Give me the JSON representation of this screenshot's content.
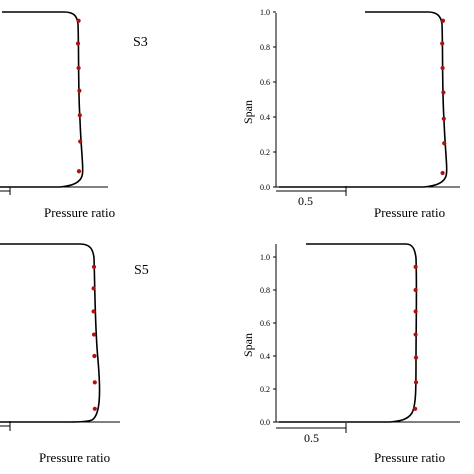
{
  "colors": {
    "curve": "#000000",
    "marker": "#b01010",
    "axis": "#000000"
  },
  "chart_data": [
    {
      "type": "line",
      "panel_label": "S3",
      "xlabel": "Pressure ratio",
      "ylabel": "",
      "ylim": [
        0,
        1.0
      ],
      "y_ticks": [],
      "scale_bar_label": "",
      "series": [
        {
          "type": "line",
          "y": [
            1.0,
            0.99,
            0.97,
            0.93,
            0.85,
            0.7,
            0.55,
            0.4,
            0.25,
            0.12,
            0.06,
            0.03,
            0.01,
            0.0
          ],
          "x": [
            0.0,
            0.07,
            0.1,
            0.11,
            0.115,
            0.115,
            0.12,
            0.13,
            0.13,
            0.12,
            0.1,
            0.05,
            0.0,
            -0.05
          ]
        },
        {
          "type": "scatter",
          "y": [
            0.95,
            0.82,
            0.68,
            0.55,
            0.41,
            0.26,
            0.09
          ],
          "x": [
            0.1,
            0.085,
            0.1,
            0.12,
            0.13,
            0.14,
            0.11
          ]
        }
      ]
    },
    {
      "type": "line",
      "panel_label": "",
      "xlabel": "Pressure ratio",
      "ylabel": "Span",
      "ylim": [
        0,
        1.0
      ],
      "y_ticks": [
        "0.0",
        "0.2",
        "0.4",
        "0.6",
        "0.8",
        "1.0"
      ],
      "scale_bar_label": "0.5",
      "series": [
        {
          "type": "line",
          "y": [
            1.0,
            0.99,
            0.97,
            0.93,
            0.85,
            0.7,
            0.55,
            0.4,
            0.25,
            0.12,
            0.06,
            0.03,
            0.01,
            0.0
          ],
          "x": [
            0.0,
            0.07,
            0.1,
            0.11,
            0.115,
            0.115,
            0.12,
            0.13,
            0.13,
            0.12,
            0.1,
            0.05,
            0.0,
            -0.05
          ]
        },
        {
          "type": "scatter",
          "y": [
            0.95,
            0.82,
            0.68,
            0.54,
            0.39,
            0.25,
            0.08
          ],
          "x": [
            0.11,
            0.09,
            0.1,
            0.12,
            0.13,
            0.14,
            0.1
          ]
        }
      ]
    },
    {
      "type": "line",
      "panel_label": "S5",
      "xlabel": "Pressure ratio",
      "ylabel": "",
      "ylim": [
        0,
        1.0
      ],
      "y_ticks": [],
      "scale_bar_label": "",
      "series": [
        {
          "type": "line",
          "y": [
            1.0,
            0.99,
            0.97,
            0.93,
            0.85,
            0.7,
            0.55,
            0.4,
            0.25,
            0.12,
            0.06,
            0.03,
            0.01,
            0.0
          ],
          "x": [
            0.0,
            0.07,
            0.1,
            0.11,
            0.115,
            0.115,
            0.12,
            0.13,
            0.13,
            0.12,
            0.1,
            0.05,
            0.0,
            -0.05
          ]
        },
        {
          "type": "scatter",
          "y": [
            0.94,
            0.81,
            0.67,
            0.53,
            0.4,
            0.24,
            0.08
          ],
          "x": [
            0.11,
            0.1,
            0.1,
            0.11,
            0.12,
            0.13,
            0.13
          ]
        }
      ]
    },
    {
      "type": "line",
      "panel_label": "",
      "xlabel": "Pressure ratio",
      "ylabel": "Span",
      "ylim": [
        0,
        1.0
      ],
      "y_ticks": [
        "0.0",
        "0.2",
        "0.4",
        "0.6",
        "0.8",
        "1.0"
      ],
      "scale_bar_label": "0.5",
      "series": [
        {
          "type": "line",
          "y": [
            1.0,
            0.99,
            0.97,
            0.93,
            0.85,
            0.7,
            0.55,
            0.4,
            0.25,
            0.12,
            0.06,
            0.03,
            0.01,
            0.0
          ],
          "x": [
            0.0,
            0.07,
            0.1,
            0.11,
            0.115,
            0.115,
            0.12,
            0.13,
            0.13,
            0.12,
            0.1,
            0.05,
            0.0,
            -0.05
          ]
        },
        {
          "type": "scatter",
          "y": [
            0.94,
            0.8,
            0.67,
            0.53,
            0.39,
            0.24,
            0.08
          ],
          "x": [
            0.1,
            0.1,
            0.1,
            0.1,
            0.11,
            0.11,
            0.09
          ]
        }
      ]
    }
  ]
}
